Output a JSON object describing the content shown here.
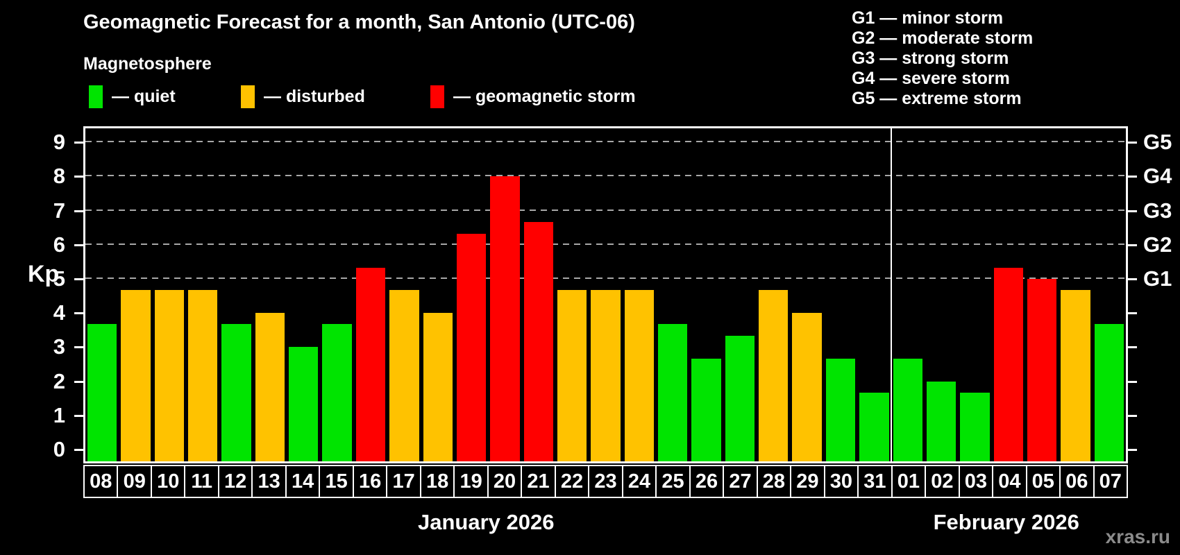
{
  "header": {
    "title": "Geomagnetic Forecast for a month, San Antonio (UTC-06)",
    "subtitle": "Magnetosphere",
    "legend": [
      {
        "key": "quiet",
        "label": "— quiet"
      },
      {
        "key": "disturbed",
        "label": "— disturbed"
      },
      {
        "key": "storm",
        "label": "— geomagnetic storm"
      }
    ],
    "g_legend": [
      "G1 — minor storm",
      "G2 — moderate storm",
      "G3 — strong storm",
      "G4 — severe storm",
      "G5 — extreme storm"
    ]
  },
  "colors": {
    "quiet": "#00e400",
    "disturbed": "#ffc200",
    "storm": "#ff0000",
    "gridline": "#a8a8a8",
    "axis": "#ffffff",
    "watermark_text": "#8b8b8b"
  },
  "chart_data": {
    "type": "bar",
    "title": "Geomagnetic Forecast for a month, San Antonio (UTC-06)",
    "ylabel": "Kp",
    "ylim": [
      0,
      9.4
    ],
    "yticks": [
      0,
      1,
      2,
      3,
      4,
      5,
      6,
      7,
      8,
      9
    ],
    "gridlines": [
      5,
      6,
      7,
      8,
      9
    ],
    "grid": "dashed, G-storm levels only",
    "right_axis": [
      {
        "level": 5,
        "label": "G1"
      },
      {
        "level": 6,
        "label": "G2"
      },
      {
        "level": 7,
        "label": "G3"
      },
      {
        "level": 8,
        "label": "G4"
      },
      {
        "level": 9,
        "label": "G5"
      }
    ],
    "months": [
      {
        "label": "January 2026",
        "days": 24
      },
      {
        "label": "February 2026",
        "days": 7
      }
    ],
    "categories": [
      "08",
      "09",
      "10",
      "11",
      "12",
      "13",
      "14",
      "15",
      "16",
      "17",
      "18",
      "19",
      "20",
      "21",
      "22",
      "23",
      "24",
      "25",
      "26",
      "27",
      "28",
      "29",
      "30",
      "31",
      "01",
      "02",
      "03",
      "04",
      "05",
      "06",
      "07"
    ],
    "bars": [
      {
        "day": "08",
        "value": 3.67,
        "status": "quiet"
      },
      {
        "day": "09",
        "value": 4.67,
        "status": "disturbed"
      },
      {
        "day": "10",
        "value": 4.67,
        "status": "disturbed"
      },
      {
        "day": "11",
        "value": 4.67,
        "status": "disturbed"
      },
      {
        "day": "12",
        "value": 3.67,
        "status": "quiet"
      },
      {
        "day": "13",
        "value": 4.0,
        "status": "disturbed"
      },
      {
        "day": "14",
        "value": 3.0,
        "status": "quiet"
      },
      {
        "day": "15",
        "value": 3.67,
        "status": "quiet"
      },
      {
        "day": "16",
        "value": 5.33,
        "status": "storm"
      },
      {
        "day": "17",
        "value": 4.67,
        "status": "disturbed"
      },
      {
        "day": "18",
        "value": 4.0,
        "status": "disturbed"
      },
      {
        "day": "19",
        "value": 6.33,
        "status": "storm"
      },
      {
        "day": "20",
        "value": 8.0,
        "status": "storm"
      },
      {
        "day": "21",
        "value": 6.67,
        "status": "storm"
      },
      {
        "day": "22",
        "value": 4.67,
        "status": "disturbed"
      },
      {
        "day": "23",
        "value": 4.67,
        "status": "disturbed"
      },
      {
        "day": "24",
        "value": 4.67,
        "status": "disturbed"
      },
      {
        "day": "25",
        "value": 3.67,
        "status": "quiet"
      },
      {
        "day": "26",
        "value": 2.67,
        "status": "quiet"
      },
      {
        "day": "27",
        "value": 3.33,
        "status": "quiet"
      },
      {
        "day": "28",
        "value": 4.67,
        "status": "disturbed"
      },
      {
        "day": "29",
        "value": 4.0,
        "status": "disturbed"
      },
      {
        "day": "30",
        "value": 2.67,
        "status": "quiet"
      },
      {
        "day": "31",
        "value": 1.67,
        "status": "quiet"
      },
      {
        "day": "01",
        "value": 2.67,
        "status": "quiet"
      },
      {
        "day": "02",
        "value": 2.0,
        "status": "quiet"
      },
      {
        "day": "03",
        "value": 1.67,
        "status": "quiet"
      },
      {
        "day": "04",
        "value": 5.33,
        "status": "storm"
      },
      {
        "day": "05",
        "value": 5.0,
        "status": "storm"
      },
      {
        "day": "06",
        "value": 4.67,
        "status": "disturbed"
      },
      {
        "day": "07",
        "value": 3.67,
        "status": "quiet"
      }
    ]
  },
  "watermark": "xras.ru"
}
